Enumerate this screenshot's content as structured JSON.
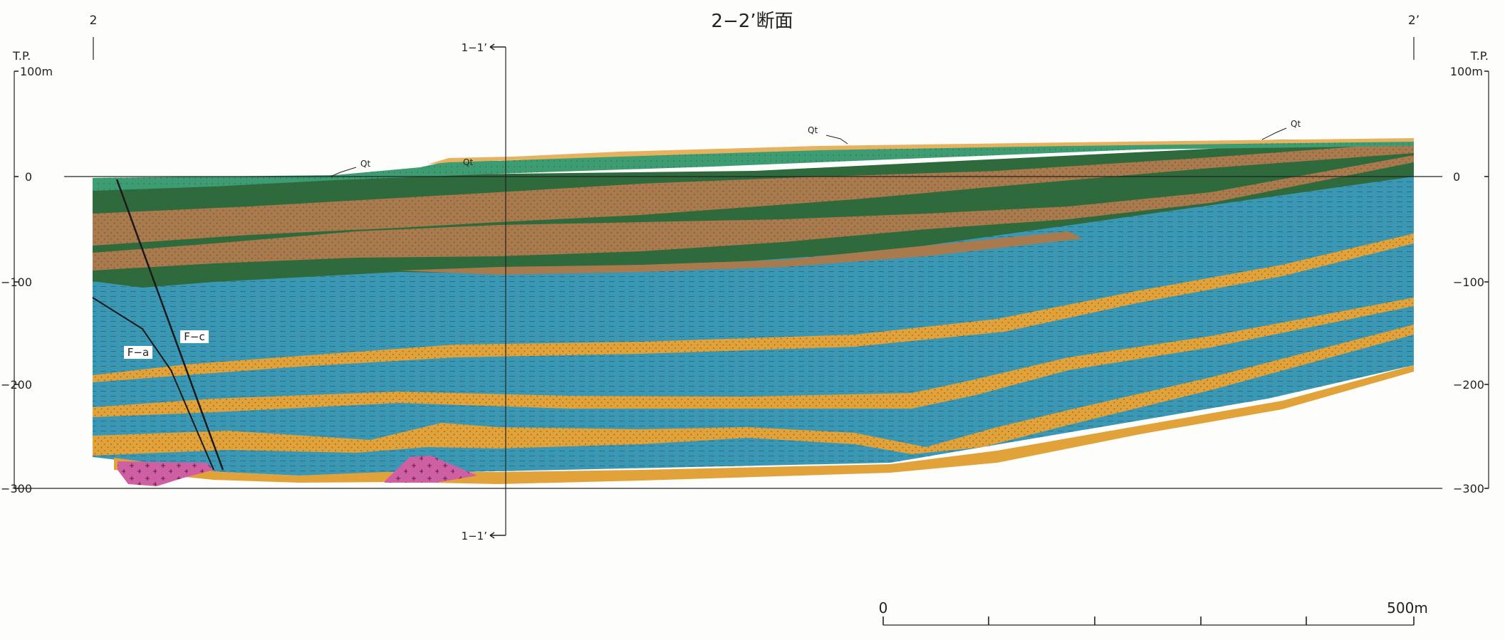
{
  "title": "2−2’断面",
  "section_start": "2",
  "section_end": "2’",
  "crossing_label": "1−1’",
  "elevation_axis": {
    "title": "T.P.",
    "unit_top": "100m",
    "ticks": [
      "0",
      "−100",
      "−200",
      "−300"
    ]
  },
  "annotations": {
    "qt": "Qt",
    "fault_a": "F−a",
    "fault_c": "F−c"
  },
  "scale_bar": {
    "start": "0",
    "end": "500m"
  },
  "colors": {
    "mudstone": "#3b98b4",
    "sand": "#e2a23a",
    "dark_green": "#2f6a3c",
    "brown": "#a87a4e",
    "surface_green": "#3e9c72",
    "qt": "#e7b25f",
    "granite": "#cf5fa3"
  }
}
